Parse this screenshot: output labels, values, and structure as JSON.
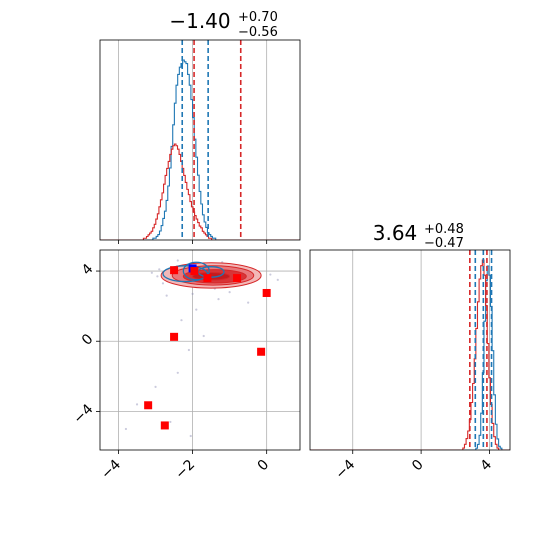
{
  "chart_data": [
    {
      "panel": "top-left",
      "type": "histogram",
      "title": {
        "main": "−1.40",
        "sup": "+0.70",
        "sub": "−0.56"
      },
      "xlim": [
        -4.5,
        0.9
      ],
      "grid": true,
      "series": [
        {
          "name": "",
          "color": "#1f77b4",
          "values": [
            0,
            0,
            0,
            0,
            0,
            0,
            0,
            0,
            0,
            0,
            0,
            0,
            0,
            0,
            0,
            0,
            0,
            0,
            0,
            0,
            0,
            0,
            0,
            0,
            0,
            0,
            0,
            0,
            0,
            0,
            0,
            0,
            1,
            1,
            2,
            3,
            5,
            8,
            12,
            16,
            22,
            30,
            40,
            52,
            64,
            76,
            86,
            92,
            96,
            98,
            100,
            99,
            98,
            92,
            86,
            78,
            68,
            56,
            46,
            36,
            27,
            20,
            14,
            10,
            7,
            4,
            3,
            2,
            1,
            1,
            0,
            0,
            0,
            0,
            0,
            0,
            0,
            0,
            0,
            0,
            0,
            0,
            0,
            0,
            0,
            0,
            0,
            0,
            0,
            0,
            0,
            0,
            0,
            0,
            0,
            0,
            0,
            0,
            0,
            0,
            0,
            0,
            0,
            0,
            0,
            0,
            0,
            0,
            0,
            0,
            0,
            0,
            0,
            0,
            0,
            0,
            0,
            0,
            0,
            0,
            0
          ]
        },
        {
          "name": "",
          "color": "#d62728",
          "values": [
            0,
            0,
            0,
            0,
            0,
            0,
            0,
            0,
            0,
            0,
            0,
            0,
            0,
            0,
            0,
            0,
            0,
            0,
            0,
            0,
            0,
            0,
            0,
            0,
            0,
            0,
            0,
            0,
            1,
            1,
            2,
            3,
            4,
            5,
            7,
            9,
            12,
            15,
            19,
            23,
            27,
            32,
            37,
            41,
            45,
            49,
            52,
            54,
            55,
            54,
            52,
            49,
            45,
            41,
            37,
            33,
            29,
            26,
            22,
            19,
            16,
            14,
            12,
            10,
            8,
            7,
            5,
            4,
            3,
            2,
            1,
            1,
            0,
            0,
            0,
            0,
            0,
            0,
            0,
            0,
            0,
            0,
            0,
            0,
            0,
            0,
            0,
            0,
            0,
            0,
            0,
            0,
            0,
            0,
            0,
            0,
            0,
            0,
            0,
            0,
            0,
            0,
            0,
            0,
            0,
            0,
            0,
            0,
            0,
            0,
            0,
            0,
            0,
            0,
            0,
            0,
            0,
            0,
            0,
            0,
            0,
            0,
            0,
            0,
            0,
            0,
            0,
            0,
            0
          ]
        }
      ],
      "quantile_lines": [
        {
          "x": -2.28,
          "color": "#1f77b4"
        },
        {
          "x": -1.58,
          "color": "#1f77b4"
        },
        {
          "x": -1.96,
          "color": "#d62728"
        },
        {
          "x": -0.7,
          "color": "#d62728"
        }
      ]
    },
    {
      "panel": "bottom-left",
      "type": "scatter",
      "xlim": [
        -4.5,
        0.9
      ],
      "ylim": [
        -6.2,
        5.2
      ],
      "xticks": [
        "−4",
        "−2",
        "0"
      ],
      "yticks": [
        "−4",
        "0",
        "4"
      ],
      "xtick_values": [
        -4,
        -2,
        0
      ],
      "ytick_values": [
        -4,
        0,
        4
      ],
      "grid": true,
      "markers": [
        {
          "x": -2.0,
          "y": 4.15,
          "color": "#0000ff"
        },
        {
          "x": -2.5,
          "y": 4.05,
          "color": "#ff0000"
        },
        {
          "x": -1.95,
          "y": 4.0,
          "color": "#ff0000"
        },
        {
          "x": -1.6,
          "y": 3.6,
          "color": "#ff0000"
        },
        {
          "x": -0.8,
          "y": 3.6,
          "color": "#ff0000"
        },
        {
          "x": 0.0,
          "y": 2.75,
          "color": "#ff0000"
        },
        {
          "x": -2.5,
          "y": 0.25,
          "color": "#ff0000"
        },
        {
          "x": -0.15,
          "y": -0.6,
          "color": "#ff0000"
        },
        {
          "x": -3.2,
          "y": -3.65,
          "color": "#ff0000"
        },
        {
          "x": -2.75,
          "y": -4.8,
          "color": "#ff0000"
        }
      ],
      "faint_points": [
        [
          -2.9,
          4.1
        ],
        [
          -2.6,
          3.9
        ],
        [
          -2.2,
          3.5
        ],
        [
          -1.8,
          3.1
        ],
        [
          -1.2,
          4.5
        ],
        [
          -0.6,
          3.7
        ],
        [
          -0.3,
          3.9
        ],
        [
          0.1,
          3.8
        ],
        [
          0.3,
          3.5
        ],
        [
          -2.8,
          3.3
        ],
        [
          -2.4,
          4.6
        ],
        [
          -1.4,
          3.0
        ],
        [
          -0.9,
          3.2
        ],
        [
          -2.95,
          3.7
        ],
        [
          -3.1,
          3.9
        ],
        [
          -2.0,
          2.7
        ],
        [
          -1.0,
          2.8
        ],
        [
          -2.3,
          1.2
        ],
        [
          -1.7,
          0.3
        ],
        [
          -3.5,
          -3.6
        ],
        [
          -3.0,
          -2.6
        ],
        [
          -2.6,
          -4.6
        ],
        [
          -2.05,
          -5.4
        ],
        [
          -2.4,
          -1.8
        ],
        [
          -2.1,
          -0.5
        ],
        [
          -1.9,
          1.8
        ],
        [
          -0.5,
          2.2
        ],
        [
          -3.8,
          -5.0
        ],
        [
          -1.3,
          2.4
        ],
        [
          -2.7,
          2.6
        ]
      ],
      "contours": [
        {
          "cx": -1.5,
          "cy": 3.75,
          "rx": 1.35,
          "ry": 0.72,
          "fill": "#f2b8b8"
        },
        {
          "cx": -1.45,
          "cy": 3.75,
          "rx": 1.1,
          "ry": 0.55,
          "fill": "#e8777a"
        },
        {
          "cx": -1.4,
          "cy": 3.7,
          "rx": 0.85,
          "ry": 0.38,
          "fill": "#d83437"
        },
        {
          "cx": -1.5,
          "cy": 3.7,
          "rx": 0.5,
          "ry": 0.22,
          "fill": "#c31b1e"
        }
      ],
      "blue_contours": [
        {
          "cx": -1.9,
          "cy": 4.0,
          "rx": 0.35,
          "ry": 0.5
        },
        {
          "cx": -2.2,
          "cy": 3.85,
          "rx": 0.6,
          "ry": 0.45
        },
        {
          "cx": -1.5,
          "cy": 3.95,
          "rx": 0.35,
          "ry": 0.3
        }
      ]
    },
    {
      "panel": "bottom-right",
      "type": "histogram",
      "title": {
        "main": "3.64",
        "sup": "+0.48",
        "sub": "−0.47"
      },
      "xlim": [
        -6.5,
        5.2
      ],
      "xticks": [
        "−4",
        "0",
        "4"
      ],
      "xtick_values": [
        -4,
        0,
        4
      ],
      "grid": true,
      "series": [
        {
          "name": "",
          "color": "#1f77b4",
          "values": [
            0,
            0,
            0,
            0,
            0,
            0,
            0,
            0,
            0,
            0,
            0,
            0,
            0,
            0,
            0,
            0,
            0,
            0,
            0,
            0,
            0,
            0,
            0,
            0,
            0,
            0,
            0,
            0,
            0,
            0,
            0,
            0,
            0,
            0,
            0,
            0,
            0,
            0,
            0,
            0,
            0,
            0,
            0,
            0,
            0,
            0,
            0,
            0,
            0,
            0,
            0,
            0,
            0,
            0,
            0,
            0,
            0,
            0,
            0,
            0,
            0,
            0,
            0,
            0,
            0,
            0,
            0,
            0,
            0,
            0,
            0,
            0,
            0,
            0,
            0,
            0,
            0,
            0,
            0,
            0,
            0,
            0,
            0,
            0,
            0,
            0,
            0,
            0,
            0,
            0,
            0,
            0,
            0,
            0,
            0,
            0,
            0,
            0,
            0,
            0,
            0,
            0,
            1,
            3,
            8,
            20,
            42,
            70,
            92,
            100,
            95,
            78,
            54,
            30,
            14,
            6,
            2,
            1,
            0,
            0,
            0,
            0,
            0
          ]
        },
        {
          "name": "",
          "color": "#d62728",
          "values": [
            0,
            0,
            0,
            0,
            0,
            0,
            0,
            0,
            0,
            0,
            0,
            0,
            0,
            0,
            0,
            0,
            0,
            0,
            0,
            0,
            0,
            0,
            0,
            0,
            0,
            0,
            0,
            0,
            0,
            0,
            0,
            0,
            0,
            0,
            0,
            0,
            0,
            0,
            0,
            0,
            0,
            0,
            0,
            0,
            0,
            0,
            0,
            0,
            0,
            0,
            0,
            0,
            0,
            0,
            0,
            0,
            0,
            0,
            0,
            0,
            0,
            0,
            0,
            0,
            0,
            0,
            0,
            0,
            0,
            0,
            0,
            0,
            0,
            0,
            0,
            0,
            0,
            0,
            0,
            0,
            0,
            0,
            0,
            0,
            0,
            0,
            0,
            0,
            0,
            0,
            0,
            0,
            0,
            0,
            1,
            3,
            6,
            10,
            16,
            25,
            35,
            48,
            64,
            78,
            90,
            97,
            100,
            92,
            76,
            56,
            38,
            24,
            14,
            7,
            3,
            1,
            0,
            0,
            0,
            0,
            0,
            0,
            0
          ]
        }
      ],
      "quantile_lines": [
        {
          "x": 3.17,
          "color": "#1f77b4"
        },
        {
          "x": 4.12,
          "color": "#1f77b4"
        },
        {
          "x": 3.64,
          "color": "#1f77b4"
        },
        {
          "x": 2.85,
          "color": "#d62728"
        },
        {
          "x": 3.85,
          "color": "#d62728"
        }
      ]
    }
  ]
}
